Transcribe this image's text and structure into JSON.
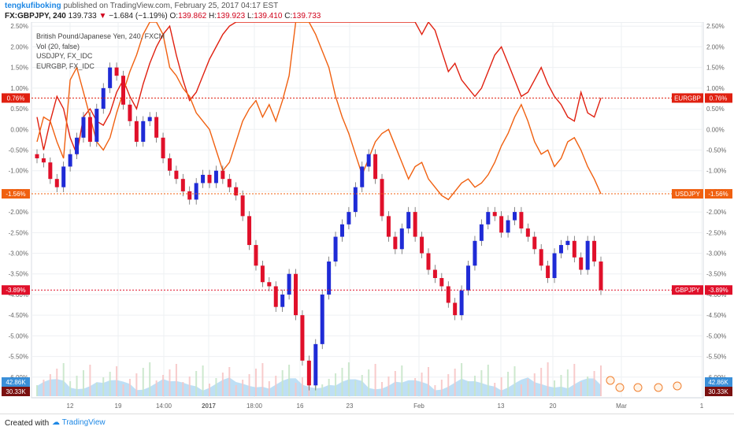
{
  "header": {
    "user": "tengkufiboking",
    "published": "published on TradingView.com, February 25, 2017 04:17 EST",
    "symbol": "FX:GBPJPY, 240",
    "last": "139.733",
    "change": "−1.684 (−1.19%)",
    "open_label": "O:",
    "open": "139.862",
    "high_label": "H:",
    "high": "139.923",
    "low_label": "L:",
    "low": "139.410",
    "close_label": "C:",
    "close": "139.733"
  },
  "legend": {
    "main": "British Pound/Japanese Yen, 240, FXCM",
    "vol": "Vol (20, false)",
    "s1": "USDJPY, FX_IDC",
    "s2": "EURGBP, FX_IDC"
  },
  "footer": {
    "created": "Created with",
    "brand": "TradingView"
  },
  "colors": {
    "up": "#1f2bd6",
    "down": "#e0102a",
    "eurgbp": "#e02010",
    "usdjpy": "#f06010",
    "vol_area": "#a8d4f2",
    "vol_up": "#c8e6c9",
    "vol_down": "#f7c5c5",
    "grid": "#eef0f3",
    "axis_text": "#666666"
  },
  "chart_data": {
    "type": "line",
    "title": "British Pound/Japanese Yen, 240, FXCM",
    "y_unit": "percent",
    "ylim": [
      -6.5,
      2.6
    ],
    "y_ticks": [
      "2.50%",
      "2.00%",
      "1.50%",
      "1.00%",
      "0.50%",
      "0.00%",
      "-0.50%",
      "-1.00%",
      "-1.50%",
      "-2.00%",
      "-2.50%",
      "-3.00%",
      "-3.50%",
      "-4.00%",
      "-4.50%",
      "-5.00%",
      "-5.50%",
      "-6.00%"
    ],
    "x_ticks": [
      "12",
      "19",
      "14:00",
      "2017",
      "18:00",
      "16",
      "23",
      "Feb",
      "13",
      "20",
      "Mar",
      "1"
    ],
    "grid": true,
    "series": [
      {
        "name": "GBPJPY",
        "style": "candles",
        "last_value": "-3.89%",
        "close": [
          -0.7,
          -0.8,
          -1.2,
          -1.4,
          -0.9,
          -0.6,
          -0.2,
          0.3,
          -0.3,
          0.5,
          1.0,
          1.5,
          1.3,
          0.6,
          0.2,
          -0.3,
          0.2,
          0.3,
          -0.2,
          -0.7,
          -1.0,
          -1.2,
          -1.5,
          -1.7,
          -1.3,
          -1.1,
          -1.3,
          -1.0,
          -1.2,
          -1.4,
          -1.6,
          -2.1,
          -2.8,
          -3.3,
          -3.7,
          -3.8,
          -4.3,
          -4.0,
          -3.5,
          -4.5,
          -5.6,
          -6.2,
          -5.2,
          -4.0,
          -3.2,
          -2.6,
          -2.3,
          -2.0,
          -1.4,
          -0.9,
          -0.6,
          -1.2,
          -2.1,
          -2.6,
          -2.9,
          -2.4,
          -2.0,
          -2.6,
          -3.0,
          -3.4,
          -3.6,
          -3.8,
          -4.2,
          -4.5,
          -3.9,
          -3.3,
          -2.7,
          -2.3,
          -2.0,
          -2.1,
          -2.5,
          -2.2,
          -2.0,
          -2.4,
          -2.6,
          -2.9,
          -3.3,
          -3.6,
          -3.0,
          -2.8,
          -2.7,
          -3.1,
          -3.4,
          -2.7,
          -3.2,
          -3.89
        ]
      },
      {
        "name": "USDJPY",
        "style": "line",
        "last_value": "-1.56%",
        "values": [
          -0.3,
          0.3,
          0.2,
          -0.3,
          -0.7,
          1.2,
          1.5,
          0.9,
          0.3,
          -0.3,
          -0.5,
          -0.2,
          0.4,
          0.9,
          1.4,
          1.8,
          2.3,
          2.6,
          2.6,
          2.3,
          1.5,
          1.3,
          1.0,
          0.8,
          0.4,
          0.2,
          0.0,
          -0.5,
          -1.0,
          -0.8,
          -0.3,
          0.2,
          0.5,
          0.7,
          0.3,
          0.6,
          0.2,
          0.7,
          1.3,
          2.6,
          2.6,
          2.6,
          2.3,
          1.9,
          1.5,
          0.8,
          0.3,
          -0.1,
          -0.6,
          -1.1,
          -0.7,
          -0.3,
          -0.1,
          0.0,
          -0.4,
          -0.8,
          -1.2,
          -0.9,
          -0.8,
          -1.2,
          -1.4,
          -1.6,
          -1.7,
          -1.5,
          -1.3,
          -1.2,
          -1.4,
          -1.3,
          -1.1,
          -0.8,
          -0.4,
          -0.1,
          0.3,
          0.6,
          0.2,
          -0.3,
          -0.6,
          -0.5,
          -0.9,
          -0.7,
          -0.3,
          -0.2,
          -0.5,
          -0.9,
          -1.2,
          -1.56
        ]
      },
      {
        "name": "EURGBP",
        "style": "line",
        "last_value": "0.76%",
        "values": [
          0.3,
          -0.5,
          0.2,
          0.8,
          0.5,
          -0.2,
          -0.6,
          0.3,
          0.5,
          0.2,
          0.1,
          0.4,
          0.9,
          1.2,
          0.8,
          0.5,
          1.1,
          1.6,
          2.0,
          2.3,
          2.5,
          1.8,
          1.2,
          0.7,
          0.9,
          1.3,
          1.7,
          2.0,
          2.3,
          2.5,
          2.6,
          2.6,
          2.6,
          2.6,
          2.6,
          2.6,
          2.6,
          2.6,
          2.6,
          2.6,
          2.6,
          2.6,
          2.6,
          2.6,
          2.6,
          2.6,
          2.6,
          2.6,
          2.6,
          2.6,
          2.6,
          2.6,
          2.6,
          2.6,
          2.6,
          2.6,
          2.6,
          2.6,
          2.3,
          2.6,
          2.4,
          1.9,
          1.4,
          1.6,
          1.2,
          1.0,
          0.8,
          1.0,
          1.4,
          1.8,
          2.0,
          1.6,
          1.2,
          0.8,
          0.9,
          1.2,
          1.5,
          1.1,
          0.8,
          0.6,
          0.3,
          0.2,
          0.9,
          0.4,
          0.3,
          0.76
        ]
      }
    ],
    "volume_badges": [
      "42.86K",
      "30.33K"
    ]
  }
}
